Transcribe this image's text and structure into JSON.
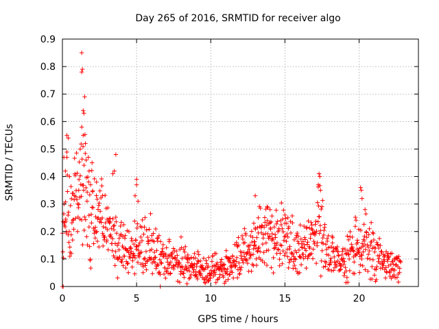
{
  "chart_data": {
    "type": "scatter",
    "title": "Day 265 of 2016, SRMTID for receiver algo",
    "xlabel": "GPS time / hours",
    "ylabel": "SRMTID / TECUs",
    "xlim": [
      0,
      24
    ],
    "ylim": [
      0,
      0.9
    ],
    "xticks": [
      "0",
      "5",
      "10",
      "15",
      "20"
    ],
    "yticks": [
      "0",
      "0.1",
      "0.2",
      "0.3",
      "0.4",
      "0.5",
      "0.6",
      "0.7",
      "0.8",
      "0.9"
    ],
    "grid": true,
    "marker": "+",
    "color": "#ff0000",
    "trend": [
      [
        0.0,
        0.26
      ],
      [
        0.4,
        0.28
      ],
      [
        0.8,
        0.32
      ],
      [
        1.2,
        0.36
      ],
      [
        1.5,
        0.34
      ],
      [
        2.0,
        0.27
      ],
      [
        2.5,
        0.24
      ],
      [
        3.0,
        0.22
      ],
      [
        3.5,
        0.18
      ],
      [
        4.0,
        0.14
      ],
      [
        4.5,
        0.12
      ],
      [
        5.0,
        0.16
      ],
      [
        5.5,
        0.15
      ],
      [
        6.0,
        0.14
      ],
      [
        6.5,
        0.11
      ],
      [
        7.0,
        0.1
      ],
      [
        7.5,
        0.09
      ],
      [
        8.0,
        0.08
      ],
      [
        8.5,
        0.08
      ],
      [
        9.0,
        0.07
      ],
      [
        9.5,
        0.06
      ],
      [
        10.0,
        0.06
      ],
      [
        10.5,
        0.07
      ],
      [
        11.0,
        0.07
      ],
      [
        11.5,
        0.08
      ],
      [
        12.0,
        0.11
      ],
      [
        12.5,
        0.13
      ],
      [
        13.0,
        0.16
      ],
      [
        13.5,
        0.18
      ],
      [
        14.0,
        0.2
      ],
      [
        14.5,
        0.17
      ],
      [
        15.0,
        0.19
      ],
      [
        15.5,
        0.15
      ],
      [
        16.0,
        0.13
      ],
      [
        16.5,
        0.14
      ],
      [
        17.0,
        0.18
      ],
      [
        17.3,
        0.25
      ],
      [
        17.7,
        0.15
      ],
      [
        18.0,
        0.12
      ],
      [
        18.5,
        0.1
      ],
      [
        19.0,
        0.09
      ],
      [
        19.5,
        0.13
      ],
      [
        20.0,
        0.15
      ],
      [
        20.3,
        0.17
      ],
      [
        20.6,
        0.15
      ],
      [
        21.0,
        0.12
      ],
      [
        21.5,
        0.08
      ],
      [
        22.0,
        0.08
      ],
      [
        22.5,
        0.07
      ],
      [
        22.8,
        0.07
      ]
    ],
    "spikes": [
      [
        1.3,
        0.85
      ],
      [
        1.35,
        0.79
      ],
      [
        1.3,
        0.78
      ],
      [
        1.5,
        0.69
      ],
      [
        1.4,
        0.64
      ],
      [
        1.45,
        0.63
      ],
      [
        1.3,
        0.58
      ],
      [
        1.4,
        0.55
      ],
      [
        0.3,
        0.55
      ],
      [
        0.4,
        0.54
      ],
      [
        0.1,
        0.47
      ],
      [
        3.6,
        0.48
      ],
      [
        1.2,
        0.5
      ],
      [
        1.55,
        0.52
      ],
      [
        0.3,
        0.47
      ],
      [
        1.6,
        0.46
      ],
      [
        13.0,
        0.33
      ],
      [
        13.8,
        0.29
      ],
      [
        14.0,
        0.28
      ],
      [
        17.3,
        0.41
      ],
      [
        17.35,
        0.4
      ],
      [
        17.25,
        0.37
      ],
      [
        17.4,
        0.35
      ],
      [
        17.5,
        0.29
      ],
      [
        20.1,
        0.36
      ],
      [
        20.15,
        0.35
      ],
      [
        20.2,
        0.32
      ],
      [
        20.4,
        0.28
      ],
      [
        5.0,
        0.39
      ],
      [
        5.0,
        0.37
      ],
      [
        4.9,
        0.33
      ],
      [
        5.1,
        0.31
      ],
      [
        3.5,
        0.42
      ],
      [
        3.4,
        0.41
      ],
      [
        2.0,
        0.45
      ],
      [
        0.2,
        0.42
      ],
      [
        0.0,
        0.0
      ],
      [
        0.05,
        0.0
      ],
      [
        6.6,
        0.0
      ],
      [
        8.4,
        0.01
      ],
      [
        2.3,
        0.38
      ],
      [
        0.6,
        0.12
      ],
      [
        0.5,
        0.11
      ],
      [
        1.1,
        0.35
      ],
      [
        0.8,
        0.33
      ],
      [
        1.8,
        0.42
      ],
      [
        1.9,
        0.37
      ],
      [
        2.7,
        0.33
      ],
      [
        15.0,
        0.26
      ],
      [
        15.2,
        0.25
      ],
      [
        13.2,
        0.25
      ],
      [
        12.9,
        0.23
      ],
      [
        8.0,
        0.18
      ],
      [
        7.2,
        0.17
      ]
    ]
  }
}
